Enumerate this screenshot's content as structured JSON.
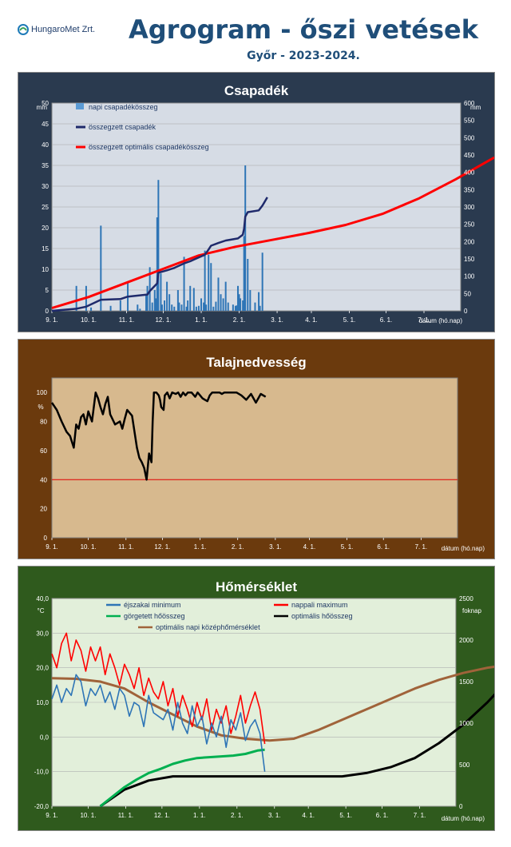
{
  "header": {
    "logo_text": "HungaroMet Zrt.",
    "title": "Agrogram - őszi vetések",
    "subtitle": "Győr - 2023-2024."
  },
  "colors": {
    "panel1_bg": "#2a3a4f",
    "panel1_plot": "#d6dce5",
    "panel2_bg": "#6b3a0d",
    "panel2_plot": "#d7b98e",
    "panel3_bg": "#2f5a1d",
    "panel3_plot": "#e2efda"
  },
  "x_axis": {
    "ticks": [
      "9. 1.",
      "10. 1.",
      "11. 1.",
      "12. 1.",
      "1. 1.",
      "2. 1.",
      "3. 1.",
      "4. 1.",
      "5. 1.",
      "6. 1.",
      "7. 1."
    ],
    "label": "dátum (hó.nap)"
  },
  "chart_data": [
    {
      "type": "bar",
      "title": "Csapadék",
      "y_unit_left": "mm",
      "y_unit_right": "mm",
      "ylim_left": [
        0,
        50
      ],
      "ylim_right": [
        0,
        600
      ],
      "left_ticks": [
        "0",
        "5",
        "10",
        "15",
        "20",
        "25",
        "30",
        "35",
        "40",
        "45",
        "50"
      ],
      "right_ticks": [
        "0",
        "50",
        "100",
        "150",
        "200",
        "250",
        "300",
        "350",
        "400",
        "450",
        "500",
        "550",
        "600"
      ],
      "legend": [
        "napi csapadékösszeg",
        "összegzett csapadék",
        "összegzett optimális csapadékösszeg"
      ],
      "daily_bars": [
        [
          20,
          6
        ],
        [
          28,
          6
        ],
        [
          32,
          0.8
        ],
        [
          40,
          20.5
        ],
        [
          48,
          1.2
        ],
        [
          56,
          2.5
        ],
        [
          62,
          7
        ],
        [
          70,
          1.5
        ],
        [
          72,
          0.5
        ],
        [
          77,
          4
        ],
        [
          78,
          6
        ],
        [
          80,
          10.5
        ],
        [
          82,
          2
        ],
        [
          84,
          5
        ],
        [
          85,
          3
        ],
        [
          86,
          22.5
        ],
        [
          87,
          31.5
        ],
        [
          89,
          9
        ],
        [
          90,
          1.5
        ],
        [
          92,
          2.5
        ],
        [
          94,
          7
        ],
        [
          96,
          4
        ],
        [
          98,
          1.5
        ],
        [
          100,
          1
        ],
        [
          103,
          5
        ],
        [
          104,
          2
        ],
        [
          106,
          1.5
        ],
        [
          108,
          13
        ],
        [
          110,
          1
        ],
        [
          111,
          2.5
        ],
        [
          113,
          6
        ],
        [
          116,
          5.5
        ],
        [
          118,
          1
        ],
        [
          120,
          1.2
        ],
        [
          122,
          3
        ],
        [
          124,
          2
        ],
        [
          125,
          14.5
        ],
        [
          126,
          1.5
        ],
        [
          128,
          13.5
        ],
        [
          130,
          11.5
        ],
        [
          132,
          1
        ],
        [
          134,
          2.2
        ],
        [
          136,
          8
        ],
        [
          138,
          4
        ],
        [
          140,
          3
        ],
        [
          142,
          7
        ],
        [
          144,
          2
        ],
        [
          148,
          1.5
        ],
        [
          150,
          1.2
        ],
        [
          151,
          1.3
        ],
        [
          152,
          6
        ],
        [
          153,
          4
        ],
        [
          154,
          3
        ],
        [
          156,
          2.5
        ],
        [
          157,
          18
        ],
        [
          158,
          35
        ],
        [
          160,
          12.5
        ],
        [
          162,
          5
        ],
        [
          166,
          2
        ],
        [
          169,
          4.5
        ],
        [
          170,
          1.2
        ],
        [
          172,
          14
        ]
      ],
      "cumulative_x": [
        0,
        20,
        28,
        40,
        56,
        62,
        78,
        80,
        86,
        87,
        94,
        100,
        108,
        113,
        116,
        125,
        128,
        130,
        136,
        142,
        152,
        156,
        157,
        158,
        160,
        169,
        172,
        176
      ],
      "cumulative_y": [
        0,
        6,
        12,
        32,
        34,
        41,
        47,
        57,
        79,
        110,
        117,
        124,
        137,
        143,
        148,
        162,
        177,
        188,
        196,
        203,
        209,
        220,
        237,
        272,
        285,
        290,
        304,
        328
      ],
      "optimal_x": [
        0,
        30,
        60,
        90,
        120,
        150,
        180,
        210,
        240,
        270,
        300,
        330,
        360,
        390,
        420,
        440
      ],
      "optimal_y": [
        8,
        40,
        80,
        120,
        160,
        185,
        205,
        225,
        248,
        280,
        325,
        380,
        440,
        485,
        505,
        505
      ]
    },
    {
      "type": "line",
      "title": "Talajnedvesség",
      "y_unit_left": "%",
      "ylim_left": [
        0,
        110
      ],
      "left_ticks": [
        "0",
        "20",
        "40",
        "60",
        "80",
        "100"
      ],
      "threshold": 40,
      "x": [
        0,
        4,
        8,
        12,
        15,
        18,
        20,
        22,
        24,
        26,
        28,
        30,
        33,
        36,
        38,
        40,
        42,
        44,
        46,
        48,
        52,
        56,
        58,
        60,
        62,
        66,
        70,
        72,
        74,
        76,
        78,
        80,
        81,
        82,
        83,
        84,
        86,
        88,
        89,
        90,
        92,
        93,
        95,
        97,
        99,
        102,
        104,
        106,
        108,
        110,
        112,
        115,
        118,
        120,
        122,
        124,
        126,
        128,
        130,
        132,
        135,
        138,
        140,
        142,
        145,
        148,
        152,
        156,
        160,
        164,
        168,
        172,
        176
      ],
      "y": [
        93,
        88,
        80,
        73,
        70,
        62,
        78,
        75,
        83,
        85,
        78,
        87,
        80,
        100,
        96,
        90,
        85,
        92,
        97,
        85,
        78,
        80,
        75,
        82,
        88,
        84,
        62,
        55,
        52,
        48,
        40,
        58,
        55,
        52,
        80,
        100,
        100,
        98,
        95,
        90,
        88,
        98,
        100,
        96,
        100,
        99,
        100,
        97,
        100,
        98,
        100,
        100,
        97,
        100,
        98,
        96,
        95,
        94,
        98,
        100,
        100,
        100,
        99,
        100,
        100,
        100,
        100,
        98,
        95,
        99,
        93,
        99,
        97
      ]
    },
    {
      "type": "line",
      "title": "Hőmérséklet",
      "y_unit_left": "°C",
      "y_unit_right": "foknap",
      "ylim_left": [
        -20,
        40
      ],
      "ylim_right": [
        0,
        2500
      ],
      "left_ticks": [
        "-20,0",
        "-10,0",
        "0,0",
        "10,0",
        "20,0",
        "30,0",
        "40,0"
      ],
      "right_ticks": [
        "0",
        "500",
        "1000",
        "1500",
        "2000",
        "2500"
      ],
      "legend": [
        "éjszakai minimum",
        "nappali maximum",
        "görgetett hőösszeg",
        "optimális hőösszeg",
        "optimális napi középhőmérséklet"
      ],
      "tmin_x": [
        0,
        4,
        8,
        12,
        16,
        20,
        24,
        28,
        32,
        36,
        40,
        44,
        48,
        52,
        56,
        60,
        64,
        68,
        72,
        76,
        80,
        84,
        88,
        92,
        96,
        100,
        104,
        108,
        112,
        116,
        120,
        124,
        128,
        132,
        136,
        140,
        144,
        148,
        152,
        156,
        160,
        164,
        168,
        172,
        176
      ],
      "tmin_y": [
        11,
        15,
        10,
        14,
        12,
        18,
        16,
        9,
        14,
        12,
        15,
        10,
        13,
        8,
        14,
        12,
        6,
        10,
        9,
        3,
        12,
        7,
        6,
        5,
        8,
        2,
        10,
        4,
        1,
        9,
        3,
        6,
        -2,
        4,
        0,
        6,
        -3,
        5,
        2,
        7,
        -1,
        3,
        5,
        1,
        -10
      ],
      "tmax_x": [
        0,
        4,
        8,
        12,
        16,
        20,
        24,
        28,
        32,
        36,
        40,
        44,
        48,
        52,
        56,
        60,
        64,
        68,
        72,
        76,
        80,
        84,
        88,
        92,
        96,
        100,
        104,
        108,
        112,
        116,
        120,
        124,
        128,
        132,
        136,
        140,
        144,
        148,
        152,
        156,
        160,
        164,
        168,
        172,
        176
      ],
      "tmax_y": [
        24,
        20,
        27,
        30,
        22,
        28,
        25,
        19,
        26,
        22,
        26,
        18,
        24,
        20,
        15,
        21,
        18,
        14,
        20,
        12,
        17,
        13,
        11,
        16,
        9,
        14,
        6,
        12,
        8,
        3,
        10,
        5,
        11,
        2,
        8,
        4,
        9,
        1,
        6,
        12,
        4,
        9,
        13,
        8,
        -2
      ],
      "gdd_x": [
        40,
        60,
        70,
        80,
        90,
        100,
        110,
        120,
        130,
        140,
        150,
        160,
        170,
        176
      ],
      "gdd_y": [
        0,
        230,
        320,
        400,
        450,
        510,
        550,
        580,
        590,
        600,
        610,
        630,
        670,
        680
      ],
      "opt_gdd_x": [
        40,
        60,
        80,
        100,
        120,
        140,
        160,
        180,
        200,
        220,
        240,
        260,
        280,
        300,
        320,
        340,
        360,
        380,
        400,
        420,
        440
      ],
      "opt_gdd_y": [
        0,
        200,
        310,
        360,
        360,
        360,
        360,
        360,
        360,
        360,
        360,
        400,
        470,
        580,
        760,
        980,
        1250,
        1560,
        1880,
        2100,
        2330
      ],
      "opt_mean_x": [
        0,
        20,
        40,
        60,
        80,
        100,
        120,
        140,
        160,
        180,
        200,
        220,
        240,
        260,
        280,
        300,
        320,
        340,
        360,
        380,
        400,
        420,
        440
      ],
      "opt_mean_y": [
        17,
        16.8,
        16,
        14,
        10,
        6.5,
        3,
        0.5,
        -0.5,
        -1,
        -0.5,
        2,
        5,
        8,
        11,
        14,
        16.5,
        18.5,
        20,
        21,
        21.8,
        22.5,
        22.8
      ]
    }
  ]
}
